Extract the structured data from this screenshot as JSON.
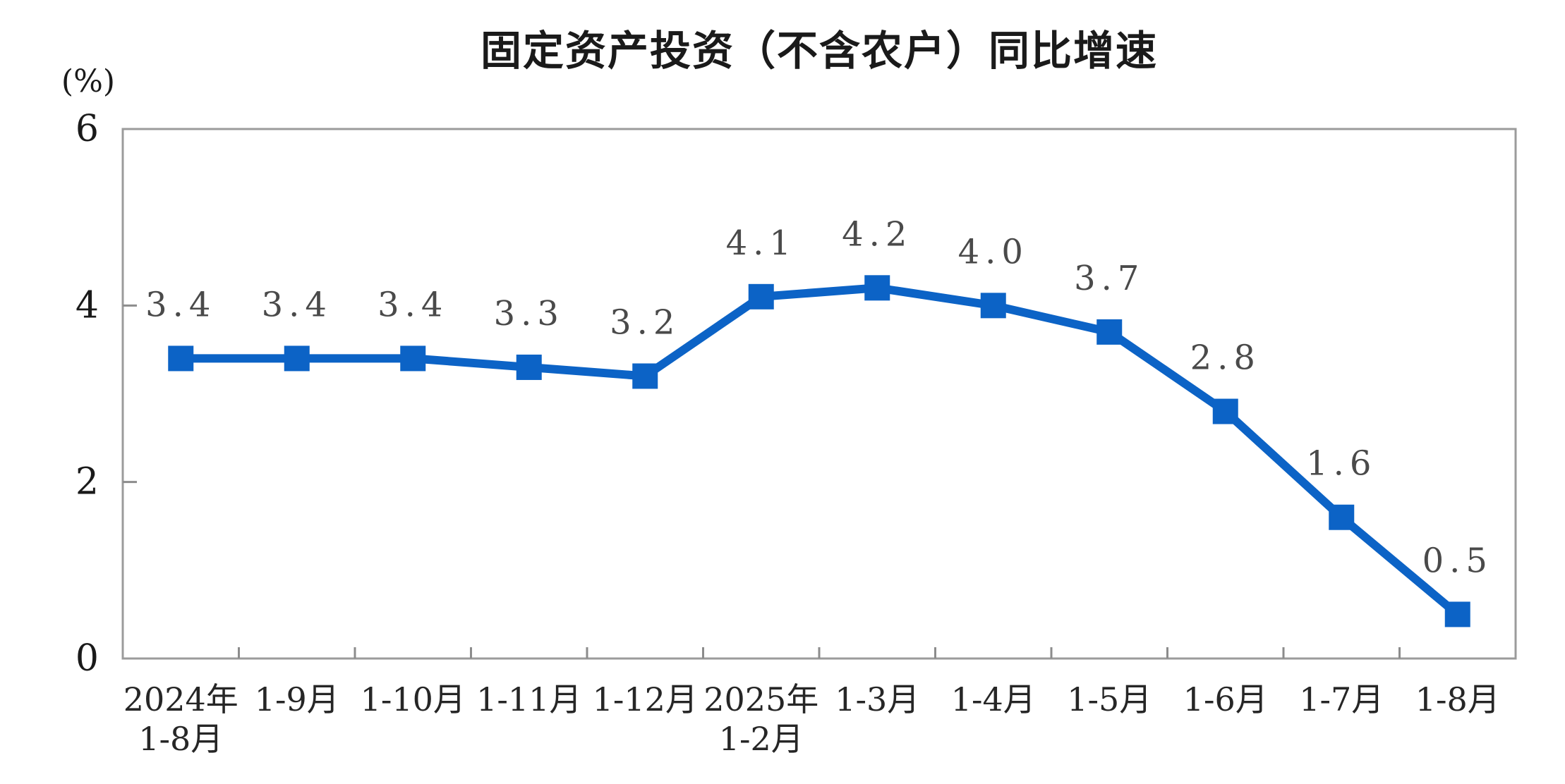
{
  "page": {
    "title": "固定资产投资（不含农户）同比增速",
    "y_unit_label": "(%)"
  },
  "chart_data": {
    "type": "line",
    "title": "固定资产投资（不含农户）同比增速",
    "xlabel": "",
    "ylabel": "(%)",
    "categories": [
      "2024年\n1-8月",
      "1-9月",
      "1-10月",
      "1-11月",
      "1-12月",
      "2025年\n1-2月",
      "1-3月",
      "1-4月",
      "1-5月",
      "1-6月",
      "1-7月",
      "1-8月"
    ],
    "series": [
      {
        "name": "固定资产投资（不含农户）同比增速",
        "values": [
          3.4,
          3.4,
          3.4,
          3.3,
          3.2,
          4.1,
          4.2,
          4.0,
          3.7,
          2.8,
          1.6,
          0.5
        ]
      }
    ],
    "data_labels": [
      "3.4",
      "3.4",
      "3.4",
      "3.3",
      "3.2",
      "4.1",
      "4.2",
      "4.0",
      "3.7",
      "2.8",
      "1.6",
      "0.5"
    ],
    "ylim": [
      0,
      6
    ],
    "y_ticks": [
      0,
      2,
      4,
      6
    ],
    "grid": false,
    "legend_position": "none",
    "marker": "square",
    "colors": {
      "line": "#0C63C6",
      "marker": "#0C63C6",
      "axis": "#9B9B9B",
      "tick": "#8C8C8C",
      "data_label": "#4A4A4A",
      "axis_label": "#262626",
      "title": "#1A1A1A",
      "background": "#FFFFFF"
    }
  }
}
